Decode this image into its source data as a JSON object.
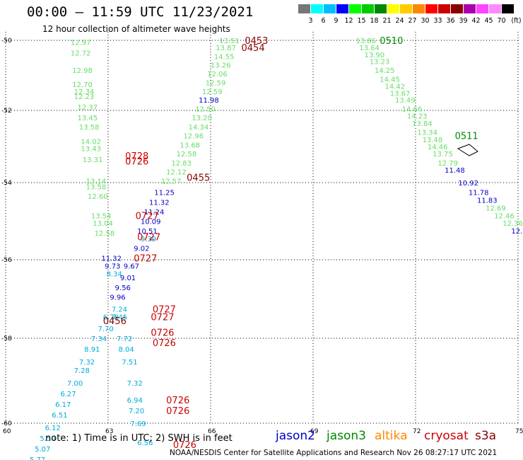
{
  "title": "00:00 – 11:59 UTC 11/23/2021",
  "subtitle": "12 hour collection of altimeter wave heights",
  "note": "note: 1) Time is in UTC; 2) SWH is in feet",
  "credit": "NOAA/NESDIS Center for Satellite Applications and Research   Nov 26 08:27:17 UTC 2021",
  "legend": {
    "unit": "(ft)",
    "colors": [
      "#777777",
      "#00ffff",
      "#00bfff",
      "#0000ff",
      "#00ff00",
      "#00cc00",
      "#008800",
      "#ffff00",
      "#ffcc00",
      "#ff8800",
      "#ff0000",
      "#cc0000",
      "#880000",
      "#aa00aa",
      "#ff44ff",
      "#ff88ff",
      "#000000"
    ],
    "labels": [
      "3",
      "6",
      "9",
      "12",
      "15",
      "18",
      "21",
      "24",
      "27",
      "30",
      "33",
      "36",
      "39",
      "42",
      "45",
      "70"
    ]
  },
  "satellites": [
    {
      "name": "jason2",
      "color": "#0000cc"
    },
    {
      "name": "jason3",
      "color": "#008800"
    },
    {
      "name": "altika",
      "color": "#ff8800"
    },
    {
      "name": "cryosat",
      "color": "#cc0000"
    },
    {
      "name": "s3a",
      "color": "#880000"
    }
  ],
  "axes": {
    "lon_ticks": [
      "60",
      "63",
      "66",
      "69",
      "72",
      "75"
    ],
    "lat_ticks": [
      "-50",
      "-52",
      "-54",
      "-56",
      "-58",
      "-60"
    ]
  },
  "observations": [
    {
      "t": "13.51",
      "lon": 66.25,
      "lat": -50.0,
      "c": "#66dd66"
    },
    {
      "t": "13.87",
      "lon": 66.15,
      "lat": -50.2,
      "c": "#66dd66"
    },
    {
      "t": "14.55",
      "lon": 66.1,
      "lat": -50.45,
      "c": "#66dd66"
    },
    {
      "t": "13.26",
      "lon": 66.0,
      "lat": -50.7,
      "c": "#66dd66"
    },
    {
      "t": "12.06",
      "lon": 65.9,
      "lat": -50.95,
      "c": "#66dd66"
    },
    {
      "t": "12.59",
      "lon": 65.85,
      "lat": -51.2,
      "c": "#66dd66"
    },
    {
      "t": "12.59",
      "lon": 65.75,
      "lat": -51.45,
      "c": "#66dd66"
    },
    {
      "t": "11.98",
      "lon": 65.65,
      "lat": -51.7,
      "c": "#0000cc"
    },
    {
      "t": "12.50",
      "lon": 65.55,
      "lat": -51.95,
      "c": "#66dd66"
    },
    {
      "t": "13.20",
      "lon": 65.45,
      "lat": -52.2,
      "c": "#66dd66"
    },
    {
      "t": "14.34",
      "lon": 65.35,
      "lat": -52.45,
      "c": "#66dd66"
    },
    {
      "t": "12.96",
      "lon": 65.2,
      "lat": -52.7,
      "c": "#66dd66"
    },
    {
      "t": "13.68",
      "lon": 65.1,
      "lat": -52.95,
      "c": "#66dd66"
    },
    {
      "t": "12.58",
      "lon": 65.0,
      "lat": -53.2,
      "c": "#66dd66"
    },
    {
      "t": "12.83",
      "lon": 64.85,
      "lat": -53.45,
      "c": "#66dd66"
    },
    {
      "t": "12.12",
      "lon": 64.7,
      "lat": -53.7,
      "c": "#66dd66"
    },
    {
      "t": "12.57",
      "lon": 64.55,
      "lat": -53.95,
      "c": "#66dd66"
    },
    {
      "t": "11.25",
      "lon": 64.35,
      "lat": -54.25,
      "c": "#0000cc"
    },
    {
      "t": "11.32",
      "lon": 64.2,
      "lat": -54.5,
      "c": "#0000cc"
    },
    {
      "t": "11.24",
      "lon": 64.05,
      "lat": -54.75,
      "c": "#0000cc"
    },
    {
      "t": "10.09",
      "lon": 63.95,
      "lat": -55.0,
      "c": "#0000cc"
    },
    {
      "t": "10.51",
      "lon": 63.85,
      "lat": -55.25,
      "c": "#0000cc"
    },
    {
      "t": "9.39",
      "lon": 63.95,
      "lat": -55.45,
      "c": "#00aadd"
    },
    {
      "t": "9.02",
      "lon": 63.75,
      "lat": -55.7,
      "c": "#0000cc"
    },
    {
      "t": "9.67",
      "lon": 63.45,
      "lat": -56.15,
      "c": "#0000cc"
    },
    {
      "t": "9.01",
      "lon": 63.35,
      "lat": -56.45,
      "c": "#0000cc"
    },
    {
      "t": "9.56",
      "lon": 63.2,
      "lat": -56.7,
      "c": "#0000cc"
    },
    {
      "t": "9.96",
      "lon": 63.05,
      "lat": -56.95,
      "c": "#0000cc"
    },
    {
      "t": "13.86",
      "lon": 70.25,
      "lat": -50.0,
      "c": "#66dd66"
    },
    {
      "t": "13.64",
      "lon": 70.35,
      "lat": -50.2,
      "c": "#66dd66"
    },
    {
      "t": "13.90",
      "lon": 70.5,
      "lat": -50.4,
      "c": "#66dd66"
    },
    {
      "t": "13.23",
      "lon": 70.65,
      "lat": -50.6,
      "c": "#66dd66"
    },
    {
      "t": "14.25",
      "lon": 70.8,
      "lat": -50.85,
      "c": "#66dd66"
    },
    {
      "t": "14.45",
      "lon": 70.95,
      "lat": -51.1,
      "c": "#66dd66"
    },
    {
      "t": "14.42",
      "lon": 71.1,
      "lat": -51.3,
      "c": "#66dd66"
    },
    {
      "t": "13.67",
      "lon": 71.25,
      "lat": -51.5,
      "c": "#66dd66"
    },
    {
      "t": "13.49",
      "lon": 71.4,
      "lat": -51.7,
      "c": "#66dd66"
    },
    {
      "t": "14.66",
      "lon": 71.6,
      "lat": -51.95,
      "c": "#66dd66"
    },
    {
      "t": "14.23",
      "lon": 71.75,
      "lat": -52.15,
      "c": "#66dd66"
    },
    {
      "t": "13.84",
      "lon": 71.9,
      "lat": -52.35,
      "c": "#66dd66"
    },
    {
      "t": "13.34",
      "lon": 72.05,
      "lat": -52.6,
      "c": "#66dd66"
    },
    {
      "t": "13.48",
      "lon": 72.2,
      "lat": -52.8,
      "c": "#66dd66"
    },
    {
      "t": "14.46",
      "lon": 72.35,
      "lat": -53.0,
      "c": "#66dd66"
    },
    {
      "t": "13.75",
      "lon": 72.5,
      "lat": -53.2,
      "c": "#66dd66"
    },
    {
      "t": "12.79",
      "lon": 72.65,
      "lat": -53.45,
      "c": "#66dd66"
    },
    {
      "t": "11.48",
      "lon": 72.85,
      "lat": -53.65,
      "c": "#0000cc"
    },
    {
      "t": "10.92",
      "lon": 73.25,
      "lat": -54.0,
      "c": "#0000cc"
    },
    {
      "t": "11.78",
      "lon": 73.55,
      "lat": -54.25,
      "c": "#0000cc"
    },
    {
      "t": "11.83",
      "lon": 73.8,
      "lat": -54.45,
      "c": "#0000cc"
    },
    {
      "t": "12.69",
      "lon": 74.05,
      "lat": -54.65,
      "c": "#66dd66"
    },
    {
      "t": "12.46",
      "lon": 74.3,
      "lat": -54.85,
      "c": "#66dd66"
    },
    {
      "t": "12.36",
      "lon": 74.55,
      "lat": -55.05,
      "c": "#66dd66"
    },
    {
      "t": "12.",
      "lon": 74.8,
      "lat": -55.25,
      "c": "#0000cc"
    },
    {
      "t": "12.97",
      "lon": 61.9,
      "lat": -50.05,
      "c": "#66dd66"
    },
    {
      "t": "12.72",
      "lon": 61.9,
      "lat": -50.35,
      "c": "#66dd66"
    },
    {
      "t": "12.98",
      "lon": 61.95,
      "lat": -50.85,
      "c": "#66dd66"
    },
    {
      "t": "12.70",
      "lon": 61.95,
      "lat": -51.25,
      "c": "#66dd66"
    },
    {
      "t": "12.34",
      "lon": 62.0,
      "lat": -51.45,
      "c": "#66dd66"
    },
    {
      "t": "12.23",
      "lon": 62.0,
      "lat": -51.6,
      "c": "#66dd66"
    },
    {
      "t": "12.37",
      "lon": 62.1,
      "lat": -51.9,
      "c": "#66dd66"
    },
    {
      "t": "13.45",
      "lon": 62.1,
      "lat": -52.2,
      "c": "#66dd66"
    },
    {
      "t": "13.58",
      "lon": 62.15,
      "lat": -52.45,
      "c": "#66dd66"
    },
    {
      "t": "14.02",
      "lon": 62.2,
      "lat": -52.85,
      "c": "#66dd66"
    },
    {
      "t": "13.43",
      "lon": 62.2,
      "lat": -53.05,
      "c": "#66dd66"
    },
    {
      "t": "13.31",
      "lon": 62.25,
      "lat": -53.35,
      "c": "#66dd66"
    },
    {
      "t": "13.14",
      "lon": 62.35,
      "lat": -53.95,
      "c": "#66dd66"
    },
    {
      "t": "13.58",
      "lon": 62.35,
      "lat": -54.1,
      "c": "#66dd66"
    },
    {
      "t": "12.60",
      "lon": 62.4,
      "lat": -54.35,
      "c": "#66dd66"
    },
    {
      "t": "13.54",
      "lon": 62.5,
      "lat": -54.85,
      "c": "#66dd66"
    },
    {
      "t": "13.04",
      "lon": 62.55,
      "lat": -55.05,
      "c": "#66dd66"
    },
    {
      "t": "12.58",
      "lon": 62.6,
      "lat": -55.3,
      "c": "#66dd66"
    },
    {
      "t": "11.32",
      "lon": 62.8,
      "lat": -55.95,
      "c": "#0000cc"
    },
    {
      "t": "9.73",
      "lon": 62.9,
      "lat": -56.15,
      "c": "#0000cc"
    },
    {
      "t": "8.34",
      "lon": 62.95,
      "lat": -56.35,
      "c": "#00aadd"
    },
    {
      "t": "7.24",
      "lon": 63.1,
      "lat": -57.25,
      "c": "#00aadd"
    },
    {
      "t": "6.78",
      "lon": 62.85,
      "lat": -57.45,
      "c": "#00aadd"
    },
    {
      "t": "7.45",
      "lon": 63.1,
      "lat": -57.45,
      "c": "#00aadd"
    },
    {
      "t": "7.70",
      "lon": 62.7,
      "lat": -57.75,
      "c": "#00aadd"
    },
    {
      "t": "7.34",
      "lon": 62.5,
      "lat": -58.0,
      "c": "#00aadd"
    },
    {
      "t": "7.72",
      "lon": 63.25,
      "lat": -58.0,
      "c": "#00aadd"
    },
    {
      "t": "8.91",
      "lon": 62.3,
      "lat": -58.25,
      "c": "#00aadd"
    },
    {
      "t": "8.04",
      "lon": 63.3,
      "lat": -58.25,
      "c": "#00aadd"
    },
    {
      "t": "7.32",
      "lon": 62.15,
      "lat": -58.55,
      "c": "#00aadd"
    },
    {
      "t": "7.51",
      "lon": 63.4,
      "lat": -58.55,
      "c": "#00aadd"
    },
    {
      "t": "7.28",
      "lon": 62.0,
      "lat": -58.75,
      "c": "#00aadd"
    },
    {
      "t": "7.00",
      "lon": 61.8,
      "lat": -59.05,
      "c": "#00aadd"
    },
    {
      "t": "7.32",
      "lon": 63.55,
      "lat": -59.05,
      "c": "#00aadd"
    },
    {
      "t": "6.27",
      "lon": 61.6,
      "lat": -59.3,
      "c": "#00aadd"
    },
    {
      "t": "6.94",
      "lon": 63.55,
      "lat": -59.45,
      "c": "#00aadd"
    },
    {
      "t": "6.17",
      "lon": 61.45,
      "lat": -59.55,
      "c": "#00aadd"
    },
    {
      "t": "7.20",
      "lon": 63.6,
      "lat": -59.7,
      "c": "#00aadd"
    },
    {
      "t": "6.51",
      "lon": 61.35,
      "lat": -59.8,
      "c": "#00aadd"
    },
    {
      "t": "7.69",
      "lon": 63.65,
      "lat": -60.0,
      "c": "#00aadd"
    },
    {
      "t": "6.12",
      "lon": 61.15,
      "lat": -60.1,
      "c": "#00aadd"
    },
    {
      "t": "5.50",
      "lon": 61.0,
      "lat": -60.35,
      "c": "#00aadd"
    },
    {
      "t": "6.56",
      "lon": 63.85,
      "lat": -60.45,
      "c": "#00aadd"
    },
    {
      "t": "5.07",
      "lon": 60.85,
      "lat": -60.6,
      "c": "#00aadd"
    },
    {
      "t": "5.77",
      "lon": 60.7,
      "lat": -60.85,
      "c": "#00aadd"
    },
    {
      "t": "5.37",
      "lon": 63.9,
      "lat": -61.15,
      "c": "#00aadd"
    }
  ],
  "passes": [
    {
      "t": "0453",
      "lon": 67.0,
      "lat": -50.0,
      "c": "#880000"
    },
    {
      "t": "0454",
      "lon": 66.9,
      "lat": -50.2,
      "c": "#880000"
    },
    {
      "t": "0510",
      "lon": 70.95,
      "lat": -50.0,
      "c": "#008800"
    },
    {
      "t": "0511",
      "lon": 73.15,
      "lat": -52.7,
      "c": "#008800"
    },
    {
      "t": "0455",
      "lon": 65.3,
      "lat": -53.85,
      "c": "#880000"
    },
    {
      "t": "0456",
      "lon": 62.85,
      "lat": -57.55,
      "c": "#880000"
    },
    {
      "t": "0728",
      "lon": 63.5,
      "lat": -53.25,
      "c": "#cc0000"
    },
    {
      "t": "0726",
      "lon": 63.5,
      "lat": -53.4,
      "c": "#cc0000"
    },
    {
      "t": "0727",
      "lon": 63.8,
      "lat": -54.85,
      "c": "#cc0000"
    },
    {
      "t": "0727",
      "lon": 63.85,
      "lat": -55.4,
      "c": "#cc0000"
    },
    {
      "t": "0727",
      "lon": 63.75,
      "lat": -55.95,
      "c": "#cc0000"
    },
    {
      "t": "0727",
      "lon": 64.3,
      "lat": -57.25,
      "c": "#cc0000"
    },
    {
      "t": "0727",
      "lon": 64.25,
      "lat": -57.45,
      "c": "#cc0000"
    },
    {
      "t": "0726",
      "lon": 64.25,
      "lat": -57.85,
      "c": "#cc0000"
    },
    {
      "t": "0726",
      "lon": 64.3,
      "lat": -58.1,
      "c": "#cc0000"
    },
    {
      "t": "0726",
      "lon": 64.7,
      "lat": -59.45,
      "c": "#cc0000"
    },
    {
      "t": "0726",
      "lon": 64.7,
      "lat": -59.7,
      "c": "#cc0000"
    },
    {
      "t": "0726",
      "lon": 64.9,
      "lat": -60.5,
      "c": "#cc0000"
    }
  ]
}
